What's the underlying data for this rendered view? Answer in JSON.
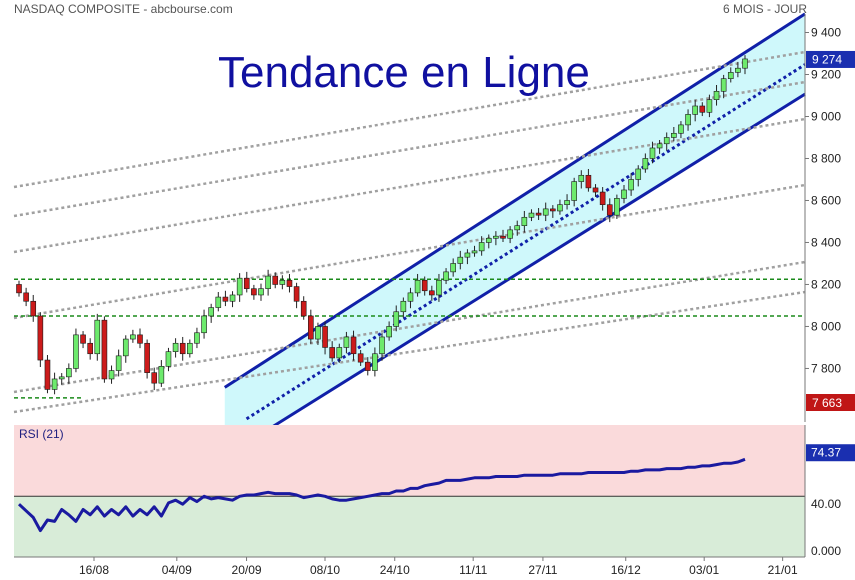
{
  "header": {
    "left": "NASDAQ COMPOSITE - abcbourse.com",
    "right": "6 MOIS - JOUR"
  },
  "title": "Tendance en Ligne",
  "colors": {
    "channel_fill": "#cff8fb",
    "channel_line": "#1020a8",
    "gray_line": "#a0a0a0",
    "green_line": "#1a8a1a",
    "candle_up": "#6dea6d",
    "candle_down": "#cc1b1b",
    "rsi_top_bg": "#fadadb",
    "rsi_bottom_bg": "#d8ecd8",
    "rsi_line": "#1a1aa0",
    "badge_blue": "#1a2fb0",
    "badge_red": "#c01616"
  },
  "chart_data": {
    "type": "candlestick",
    "title": "Tendance en Ligne",
    "instrument": "NASDAQ COMPOSITE",
    "period": "6 MOIS - JOUR",
    "x_tick_labels": [
      "16/08",
      "04/09",
      "20/09",
      "08/10",
      "24/10",
      "11/11",
      "27/11",
      "16/12",
      "03/01",
      "21/01"
    ],
    "y_ticks": [
      7800,
      8000,
      8200,
      8400,
      8600,
      8800,
      9000,
      9200,
      9400
    ],
    "y_tick_labels": [
      "7 800",
      "8 000",
      "8 200",
      "8 400",
      "8 600",
      "8 800",
      "9 000",
      "9 200",
      "9 400"
    ],
    "ylim": [
      7545,
      9450
    ],
    "last_value_label": "9 274",
    "last_value": 9274,
    "marker_label": "7 663",
    "marker_value": 7663,
    "closes": [
      8160,
      8120,
      8050,
      7840,
      7700,
      7750,
      7760,
      7800,
      7960,
      7920,
      7870,
      8030,
      7750,
      7790,
      7860,
      7940,
      7960,
      7920,
      7780,
      7730,
      7810,
      7880,
      7920,
      7870,
      7920,
      7970,
      8050,
      8090,
      8140,
      8120,
      8150,
      8230,
      8180,
      8150,
      8180,
      8240,
      8200,
      8220,
      8190,
      8120,
      8050,
      7940,
      8000,
      7900,
      7850,
      7900,
      7950,
      7870,
      7830,
      7790,
      7870,
      7950,
      8000,
      8070,
      8120,
      8160,
      8220,
      8170,
      8150,
      8220,
      8260,
      8300,
      8330,
      8350,
      8360,
      8400,
      8420,
      8430,
      8420,
      8460,
      8480,
      8520,
      8540,
      8530,
      8560,
      8550,
      8580,
      8600,
      8690,
      8720,
      8660,
      8640,
      8580,
      8530,
      8610,
      8650,
      8700,
      8750,
      8800,
      8850,
      8870,
      8900,
      8920,
      8960,
      9010,
      9050,
      9020,
      9080,
      9120,
      9180,
      9210,
      9230,
      9274
    ],
    "channel": {
      "upper": [
        {
          "date": "15/09",
          "value": 7710
        },
        {
          "date": "21/01",
          "value": 9420
        }
      ],
      "middle": [
        {
          "date": "20/09",
          "value": 7560
        },
        {
          "date": "21/01",
          "value": 9180
        }
      ],
      "lower": [
        {
          "date": "25/09",
          "value": 7510
        },
        {
          "date": "21/01",
          "value": 9040
        }
      ]
    },
    "horizontal_levels": [
      8225,
      8050,
      7660
    ],
    "rsi": {
      "label": "RSI (21)",
      "period": 21,
      "last_value_label": "74.37",
      "last_value": 74.37,
      "y_ticks": [
        0,
        40,
        80
      ],
      "y_tick_labels": [
        "0.000",
        "40.00",
        ""
      ],
      "ylim": [
        0,
        100
      ],
      "values": [
        40,
        35,
        30,
        20,
        28,
        27,
        36,
        32,
        27,
        36,
        32,
        38,
        31,
        36,
        32,
        38,
        31,
        36,
        32,
        38,
        31,
        41,
        43,
        40,
        45,
        42,
        46,
        44,
        45,
        44,
        43,
        46,
        47,
        47,
        48,
        49,
        48,
        48,
        48,
        47,
        45,
        46,
        47,
        46,
        44,
        43,
        43,
        44,
        45,
        46,
        47,
        48,
        48,
        50,
        50,
        52,
        52,
        54,
        55,
        56,
        58,
        58,
        58,
        59,
        60,
        60,
        60,
        61,
        61,
        61,
        61,
        62,
        62,
        62,
        62,
        62,
        63,
        63,
        63,
        63,
        64,
        64,
        64,
        64,
        64,
        64,
        65,
        65,
        66,
        66,
        66,
        67,
        67,
        67,
        68,
        68,
        69,
        69,
        70,
        71,
        71,
        72,
        74
      ]
    }
  }
}
